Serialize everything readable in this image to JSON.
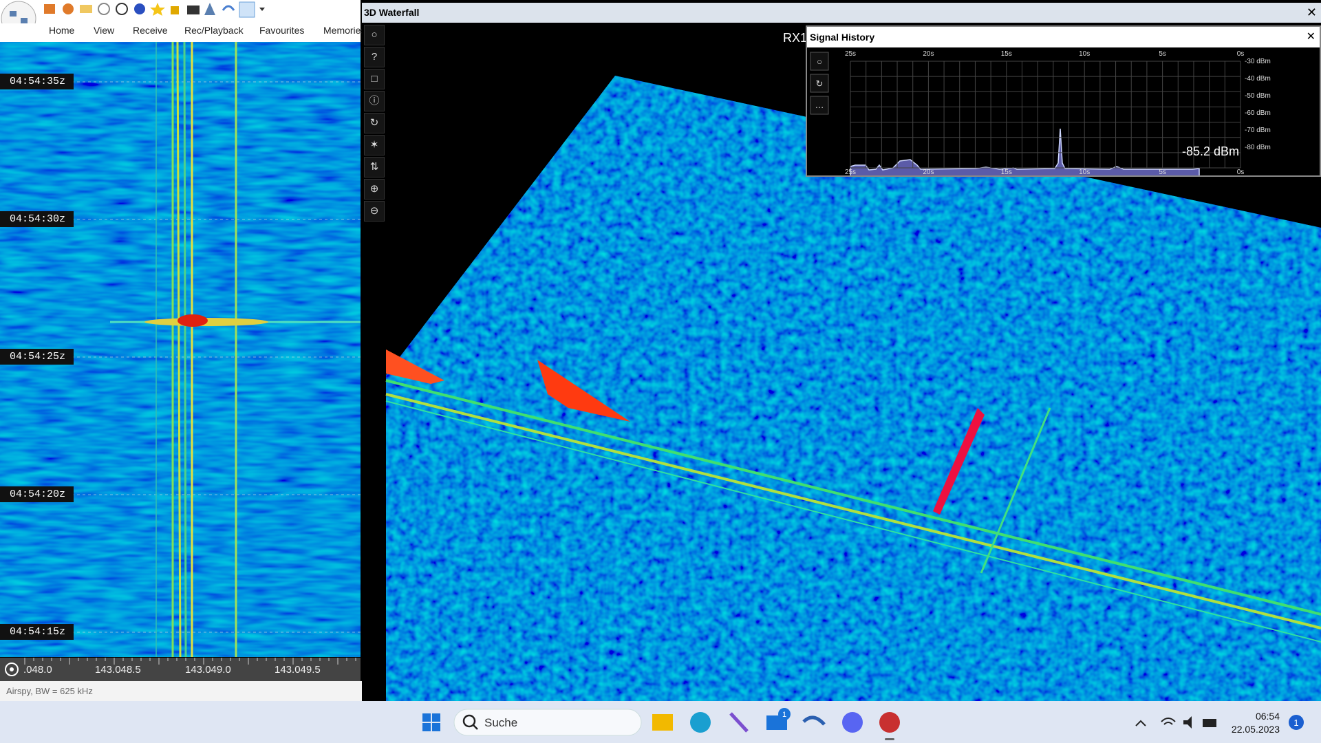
{
  "toolbar": {
    "menu": [
      "Home",
      "View",
      "Receive",
      "Rec/Playback",
      "Favourites",
      "Memories"
    ]
  },
  "waterfall": {
    "timestamps": [
      "04:54:35z",
      "04:54:30z",
      "04:54:25z",
      "04:54:20z",
      "04:54:15z"
    ],
    "frequencies": [
      ".048.0",
      "143.048.5",
      "143.049.0",
      "143.049.5"
    ],
    "status": "Airspy, BW = 625 kHz"
  },
  "window": {
    "title": "3D Waterfall",
    "label": "RX1"
  },
  "signal_history": {
    "title": "Signal History",
    "time_labels": [
      "25s",
      "20s",
      "15s",
      "10s",
      "5s",
      "0s"
    ],
    "level_labels": [
      "-30 dBm",
      "-40 dBm",
      "-50 dBm",
      "-60 dBm",
      "-70 dBm",
      "-80 dBm"
    ],
    "readout": "-85.2 dBm"
  },
  "taskbar": {
    "search": "Suche",
    "time": "06:54",
    "date": "22.05.2023",
    "mail_badge": "1",
    "notification_badge": "1"
  }
}
